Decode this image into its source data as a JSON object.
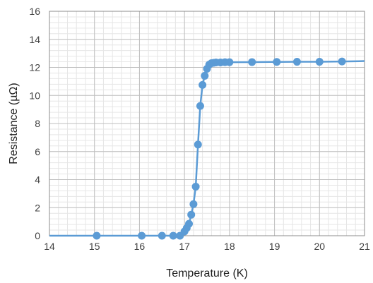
{
  "chart_data": {
    "type": "line",
    "title": "",
    "xlabel": "Temperature (K)",
    "ylabel": "Resistance (µΩ)",
    "xlim": [
      14,
      21
    ],
    "ylim": [
      0,
      16
    ],
    "x_ticks": [
      14,
      15,
      16,
      17,
      18,
      19,
      20,
      21
    ],
    "y_ticks": [
      0,
      2,
      4,
      6,
      8,
      10,
      12,
      14,
      16
    ],
    "x_tick_labels": [
      "14",
      "15",
      "16",
      "17",
      "18",
      "19",
      "20",
      "21"
    ],
    "y_tick_labels": [
      "0",
      "2",
      "4",
      "6",
      "8",
      "10",
      "12",
      "14",
      "16"
    ],
    "grid": true,
    "legend": "none",
    "series_color": "#5b9bd5",
    "series": [
      {
        "x": [
          14.0,
          15.05,
          16.05,
          16.5,
          16.75,
          16.9,
          17.0,
          17.05,
          17.1,
          17.15,
          17.2,
          17.25,
          17.3,
          17.35,
          17.4,
          17.45,
          17.5,
          17.55,
          17.6,
          17.65,
          17.7,
          17.8,
          17.9,
          18.0,
          18.5,
          19.05,
          19.5,
          20.0,
          20.5,
          21.0
        ],
        "y": [
          0.0,
          0.0,
          0.0,
          0.0,
          0.0,
          0.0,
          0.3,
          0.55,
          0.85,
          1.5,
          2.25,
          3.5,
          6.5,
          9.25,
          10.75,
          11.4,
          11.9,
          12.2,
          12.3,
          12.33,
          12.35,
          12.35,
          12.37,
          12.37,
          12.38,
          12.39,
          12.4,
          12.4,
          12.42,
          12.45
        ],
        "markers": [
          false,
          true,
          true,
          true,
          true,
          true,
          true,
          true,
          true,
          true,
          true,
          true,
          true,
          true,
          true,
          true,
          true,
          true,
          true,
          true,
          true,
          true,
          true,
          true,
          true,
          true,
          true,
          true,
          true,
          false
        ]
      }
    ]
  }
}
